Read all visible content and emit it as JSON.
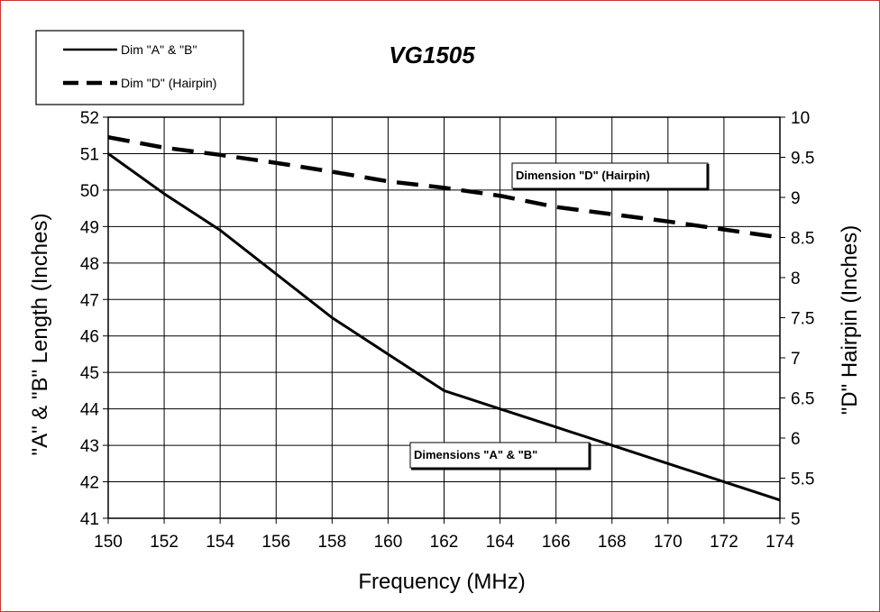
{
  "chart_data": {
    "type": "line",
    "title": "VG1505",
    "xlabel": "Frequency (MHz)",
    "ylabel": "\"A\" & \"B\" Length (Inches)",
    "y2label": "\"D\" Hairpin (Inches)",
    "x": [
      150,
      152,
      154,
      156,
      158,
      160,
      162,
      164,
      166,
      168,
      170,
      172,
      174
    ],
    "xticks": [
      "150",
      "152",
      "154",
      "156",
      "158",
      "160",
      "162",
      "164",
      "166",
      "168",
      "170",
      "172",
      "174"
    ],
    "xlim": [
      150,
      174
    ],
    "ylim": [
      41,
      52
    ],
    "yticks": [
      "41",
      "42",
      "43",
      "44",
      "45",
      "46",
      "47",
      "48",
      "49",
      "50",
      "51",
      "52"
    ],
    "y2lim": [
      5,
      10
    ],
    "y2ticks": [
      "5",
      "5.5",
      "6",
      "6.5",
      "7",
      "7.5",
      "8",
      "8.5",
      "9",
      "9.5",
      "10"
    ],
    "grid": true,
    "legend_position": "top-left",
    "series": [
      {
        "name": "Dim \"A\" & \"B\"",
        "axis": "left",
        "style": "solid",
        "values": [
          51.0,
          49.9,
          48.9,
          47.7,
          46.5,
          45.5,
          44.5,
          44.0,
          43.5,
          43.0,
          42.5,
          42.0,
          41.5
        ]
      },
      {
        "name": "Dim \"D\" (Hairpin)",
        "axis": "right",
        "style": "dashed",
        "values": [
          9.75,
          9.62,
          9.53,
          9.43,
          9.32,
          9.2,
          9.12,
          9.02,
          8.88,
          8.79,
          8.7,
          8.6,
          8.5
        ]
      }
    ],
    "annotations": [
      {
        "text": "Dimension \"D\" (Hairpin)",
        "series": 1,
        "x": 167
      },
      {
        "text": "Dimensions \"A\" & \"B\"",
        "series": 0,
        "x": 165
      }
    ],
    "colors": {
      "line": "#000000",
      "grid": "#000000",
      "frame": "#cc3333",
      "background": "#ffffff"
    }
  }
}
